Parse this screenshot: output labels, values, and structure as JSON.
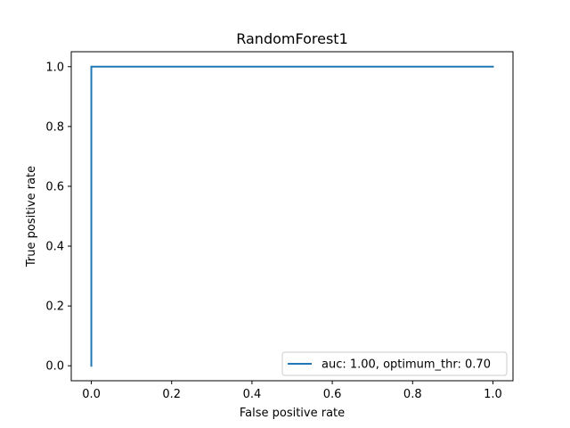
{
  "chart_data": {
    "type": "line",
    "title": "RandomForest1",
    "xlabel": "False positive rate",
    "ylabel": "True positive rate",
    "xlim": [
      -0.05,
      1.05
    ],
    "ylim": [
      -0.05,
      1.05
    ],
    "xticks": [
      0.0,
      0.2,
      0.4,
      0.6,
      0.8,
      1.0
    ],
    "xtick_labels": [
      "0.0",
      "0.2",
      "0.4",
      "0.6",
      "0.8",
      "1.0"
    ],
    "yticks": [
      0.0,
      0.2,
      0.4,
      0.6,
      0.8,
      1.0
    ],
    "ytick_labels": [
      "0.0",
      "0.2",
      "0.4",
      "0.6",
      "0.8",
      "1.0"
    ],
    "grid": false,
    "legend_position": "lower-right",
    "series": [
      {
        "name": "auc: 1.00, optimum_thr: 0.70",
        "color": "#1f77b4",
        "x": [
          0.0,
          0.0,
          1.0
        ],
        "y": [
          0.0,
          1.0,
          1.0
        ]
      }
    ]
  }
}
